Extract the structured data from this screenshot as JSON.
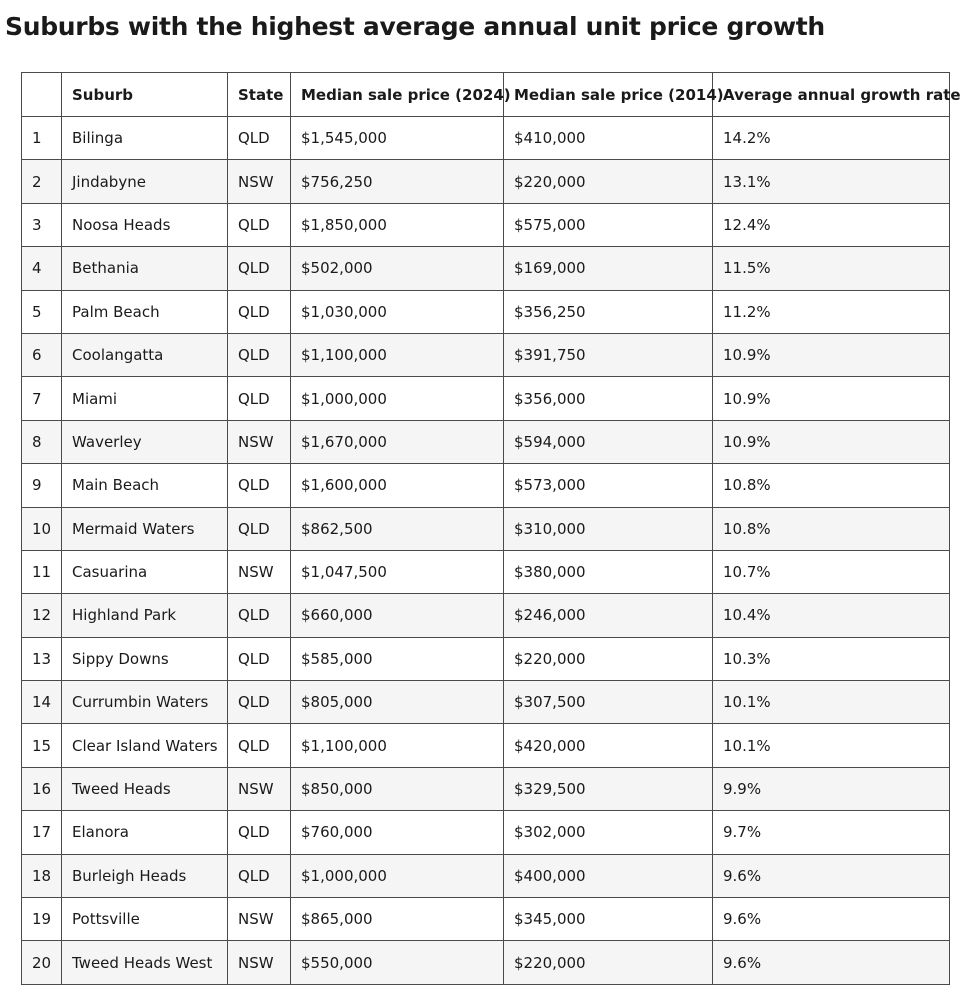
{
  "title": "Suburbs with the highest average annual unit price growth",
  "table": {
    "headers": [
      "",
      "Suburb",
      "State",
      "Median sale price (2024)",
      "Median sale price (2014)",
      "Average annual growth rate"
    ],
    "rows": [
      [
        "1",
        "Bilinga",
        "QLD",
        "$1,545,000",
        "$410,000",
        "14.2%"
      ],
      [
        "2",
        "Jindabyne",
        "NSW",
        "$756,250",
        "$220,000",
        "13.1%"
      ],
      [
        "3",
        "Noosa Heads",
        "QLD",
        "$1,850,000",
        "$575,000",
        "12.4%"
      ],
      [
        "4",
        "Bethania",
        "QLD",
        "$502,000",
        "$169,000",
        "11.5%"
      ],
      [
        "5",
        "Palm Beach",
        "QLD",
        "$1,030,000",
        "$356,250",
        "11.2%"
      ],
      [
        "6",
        "Coolangatta",
        "QLD",
        "$1,100,000",
        "$391,750",
        "10.9%"
      ],
      [
        "7",
        "Miami",
        "QLD",
        "$1,000,000",
        "$356,000",
        "10.9%"
      ],
      [
        "8",
        "Waverley",
        "NSW",
        "$1,670,000",
        "$594,000",
        "10.9%"
      ],
      [
        "9",
        "Main Beach",
        "QLD",
        "$1,600,000",
        "$573,000",
        "10.8%"
      ],
      [
        "10",
        "Mermaid Waters",
        "QLD",
        "$862,500",
        "$310,000",
        "10.8%"
      ],
      [
        "11",
        "Casuarina",
        "NSW",
        "$1,047,500",
        "$380,000",
        "10.7%"
      ],
      [
        "12",
        "Highland Park",
        "QLD",
        "$660,000",
        "$246,000",
        "10.4%"
      ],
      [
        "13",
        "Sippy Downs",
        "QLD",
        "$585,000",
        "$220,000",
        "10.3%"
      ],
      [
        "14",
        "Currumbin Waters",
        "QLD",
        "$805,000",
        "$307,500",
        "10.1%"
      ],
      [
        "15",
        "Clear Island Waters",
        "QLD",
        "$1,100,000",
        "$420,000",
        "10.1%"
      ],
      [
        "16",
        "Tweed Heads",
        "NSW",
        "$850,000",
        "$329,500",
        "9.9%"
      ],
      [
        "17",
        "Elanora",
        "QLD",
        "$760,000",
        "$302,000",
        "9.7%"
      ],
      [
        "18",
        "Burleigh Heads",
        "QLD",
        "$1,000,000",
        "$400,000",
        "9.6%"
      ],
      [
        "19",
        "Pottsville",
        "NSW",
        "$865,000",
        "$345,000",
        "9.6%"
      ],
      [
        "20",
        "Tweed Heads West",
        "NSW",
        "$550,000",
        "$220,000",
        "9.6%"
      ]
    ]
  }
}
